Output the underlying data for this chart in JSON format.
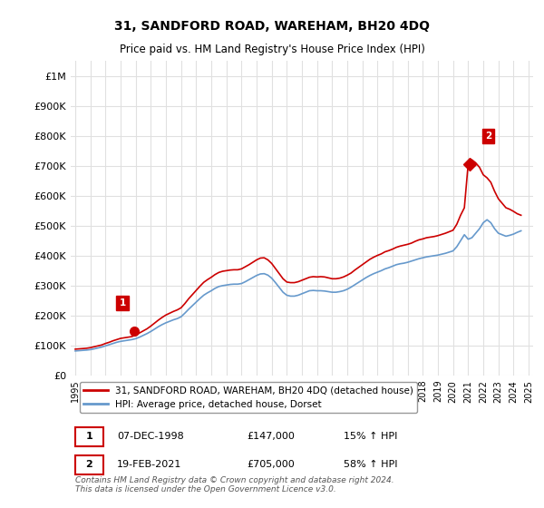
{
  "title": "31, SANDFORD ROAD, WAREHAM, BH20 4DQ",
  "subtitle": "Price paid vs. HM Land Registry's House Price Index (HPI)",
  "hpi_label": "HPI: Average price, detached house, Dorset",
  "property_label": "31, SANDFORD ROAD, WAREHAM, BH20 4DQ (detached house)",
  "annotation1_label": "1",
  "annotation1_date": "07-DEC-1998",
  "annotation1_price": "£147,000",
  "annotation1_hpi": "15% ↑ HPI",
  "annotation2_label": "2",
  "annotation2_date": "19-FEB-2021",
  "annotation2_price": "£705,000",
  "annotation2_hpi": "58% ↑ HPI",
  "footnote": "Contains HM Land Registry data © Crown copyright and database right 2024.\nThis data is licensed under the Open Government Licence v3.0.",
  "ylim": [
    0,
    1050000
  ],
  "yticks": [
    0,
    100000,
    200000,
    300000,
    400000,
    500000,
    600000,
    700000,
    800000,
    900000,
    1000000
  ],
  "ytick_labels": [
    "£0",
    "£100K",
    "£200K",
    "£300K",
    "£400K",
    "£500K",
    "£600K",
    "£700K",
    "£800K",
    "£900K",
    "£1M"
  ],
  "background_color": "#ffffff",
  "grid_color": "#e0e0e0",
  "property_line_color": "#cc0000",
  "hpi_line_color": "#6699cc",
  "marker1_color": "#cc0000",
  "marker2_color": "#cc0000",
  "annotation_box_color": "#cc0000",
  "x_start_year": 1995,
  "x_end_year": 2025,
  "xtick_years": [
    1995,
    1996,
    1997,
    1998,
    1999,
    2000,
    2001,
    2002,
    2003,
    2004,
    2005,
    2006,
    2007,
    2008,
    2009,
    2010,
    2011,
    2012,
    2013,
    2014,
    2015,
    2016,
    2017,
    2018,
    2019,
    2020,
    2021,
    2022,
    2023,
    2024,
    2025
  ],
  "sale1_x": 1998.92,
  "sale1_y": 147000,
  "sale2_x": 2021.12,
  "sale2_y": 705000,
  "hpi_x": [
    1995.0,
    1995.25,
    1995.5,
    1995.75,
    1996.0,
    1996.25,
    1996.5,
    1996.75,
    1997.0,
    1997.25,
    1997.5,
    1997.75,
    1998.0,
    1998.25,
    1998.5,
    1998.75,
    1999.0,
    1999.25,
    1999.5,
    1999.75,
    2000.0,
    2000.25,
    2000.5,
    2000.75,
    2001.0,
    2001.25,
    2001.5,
    2001.75,
    2002.0,
    2002.25,
    2002.5,
    2002.75,
    2003.0,
    2003.25,
    2003.5,
    2003.75,
    2004.0,
    2004.25,
    2004.5,
    2004.75,
    2005.0,
    2005.25,
    2005.5,
    2005.75,
    2006.0,
    2006.25,
    2006.5,
    2006.75,
    2007.0,
    2007.25,
    2007.5,
    2007.75,
    2008.0,
    2008.25,
    2008.5,
    2008.75,
    2009.0,
    2009.25,
    2009.5,
    2009.75,
    2010.0,
    2010.25,
    2010.5,
    2010.75,
    2011.0,
    2011.25,
    2011.5,
    2011.75,
    2012.0,
    2012.25,
    2012.5,
    2012.75,
    2013.0,
    2013.25,
    2013.5,
    2013.75,
    2014.0,
    2014.25,
    2014.5,
    2014.75,
    2015.0,
    2015.25,
    2015.5,
    2015.75,
    2016.0,
    2016.25,
    2016.5,
    2016.75,
    2017.0,
    2017.25,
    2017.5,
    2017.75,
    2018.0,
    2018.25,
    2018.5,
    2018.75,
    2019.0,
    2019.25,
    2019.5,
    2019.75,
    2020.0,
    2020.25,
    2020.5,
    2020.75,
    2021.0,
    2021.25,
    2021.5,
    2021.75,
    2022.0,
    2022.25,
    2022.5,
    2022.75,
    2023.0,
    2023.25,
    2023.5,
    2023.75,
    2024.0,
    2024.25,
    2024.5
  ],
  "hpi_y": [
    82000,
    83000,
    84000,
    85000,
    86500,
    89000,
    92000,
    95000,
    99000,
    103000,
    107000,
    111000,
    114000,
    116000,
    118000,
    120000,
    123000,
    128000,
    134000,
    140000,
    147000,
    155000,
    163000,
    170000,
    176000,
    181000,
    186000,
    190000,
    196000,
    208000,
    221000,
    233000,
    245000,
    257000,
    268000,
    276000,
    283000,
    291000,
    297000,
    300000,
    302000,
    304000,
    305000,
    305000,
    307000,
    313000,
    320000,
    327000,
    334000,
    339000,
    340000,
    335000,
    325000,
    310000,
    294000,
    278000,
    268000,
    265000,
    265000,
    268000,
    273000,
    278000,
    283000,
    284000,
    283000,
    283000,
    282000,
    280000,
    278000,
    278000,
    280000,
    283000,
    288000,
    295000,
    303000,
    311000,
    319000,
    327000,
    334000,
    340000,
    345000,
    350000,
    356000,
    360000,
    365000,
    370000,
    373000,
    375000,
    378000,
    382000,
    386000,
    390000,
    393000,
    396000,
    398000,
    400000,
    402000,
    405000,
    408000,
    412000,
    416000,
    430000,
    450000,
    470000,
    455000,
    460000,
    475000,
    490000,
    510000,
    520000,
    510000,
    490000,
    475000,
    470000,
    465000,
    468000,
    472000,
    478000,
    483000
  ],
  "property_x": [
    1995.0,
    1995.25,
    1995.5,
    1995.75,
    1996.0,
    1996.25,
    1996.5,
    1996.75,
    1997.0,
    1997.25,
    1997.5,
    1997.75,
    1998.0,
    1998.25,
    1998.5,
    1998.75,
    1999.0,
    1999.25,
    1999.5,
    1999.75,
    2000.0,
    2000.25,
    2000.5,
    2000.75,
    2001.0,
    2001.25,
    2001.5,
    2001.75,
    2002.0,
    2002.25,
    2002.5,
    2002.75,
    2003.0,
    2003.25,
    2003.5,
    2003.75,
    2004.0,
    2004.25,
    2004.5,
    2004.75,
    2005.0,
    2005.25,
    2005.5,
    2005.75,
    2006.0,
    2006.25,
    2006.5,
    2006.75,
    2007.0,
    2007.25,
    2007.5,
    2007.75,
    2008.0,
    2008.25,
    2008.5,
    2008.75,
    2009.0,
    2009.25,
    2009.5,
    2009.75,
    2010.0,
    2010.25,
    2010.5,
    2010.75,
    2011.0,
    2011.25,
    2011.5,
    2011.75,
    2012.0,
    2012.25,
    2012.5,
    2012.75,
    2013.0,
    2013.25,
    2013.5,
    2013.75,
    2014.0,
    2014.25,
    2014.5,
    2014.75,
    2015.0,
    2015.25,
    2015.5,
    2015.75,
    2016.0,
    2016.25,
    2016.5,
    2016.75,
    2017.0,
    2017.25,
    2017.5,
    2017.75,
    2018.0,
    2018.25,
    2018.5,
    2018.75,
    2019.0,
    2019.25,
    2019.5,
    2019.75,
    2020.0,
    2020.25,
    2020.5,
    2020.75,
    2021.0,
    2021.25,
    2021.5,
    2021.75,
    2022.0,
    2022.25,
    2022.5,
    2022.75,
    2023.0,
    2023.25,
    2023.5,
    2023.75,
    2024.0,
    2024.25,
    2024.5
  ],
  "property_y": [
    88000,
    89000,
    90000,
    91000,
    93000,
    96000,
    99000,
    102000,
    107000,
    111000,
    116000,
    120000,
    124000,
    126000,
    128000,
    130000,
    135000,
    142000,
    149000,
    156000,
    165000,
    175000,
    185000,
    194000,
    202000,
    208000,
    214000,
    219000,
    226000,
    240000,
    256000,
    270000,
    284000,
    298000,
    311000,
    320000,
    328000,
    337000,
    344000,
    348000,
    350000,
    352000,
    353000,
    353000,
    356000,
    363000,
    370000,
    378000,
    386000,
    392000,
    393000,
    386000,
    374000,
    357000,
    340000,
    323000,
    312000,
    310000,
    310000,
    313000,
    318000,
    323000,
    328000,
    330000,
    329000,
    330000,
    329000,
    326000,
    323000,
    323000,
    325000,
    329000,
    335000,
    342000,
    352000,
    361000,
    370000,
    379000,
    388000,
    395000,
    401000,
    406000,
    413000,
    417000,
    422000,
    428000,
    432000,
    435000,
    438000,
    442000,
    448000,
    453000,
    456000,
    460000,
    462000,
    464000,
    467000,
    471000,
    475000,
    480000,
    485000,
    505000,
    535000,
    560000,
    705000,
    720000,
    710000,
    695000,
    670000,
    660000,
    645000,
    615000,
    590000,
    575000,
    560000,
    555000,
    548000,
    540000,
    535000
  ]
}
